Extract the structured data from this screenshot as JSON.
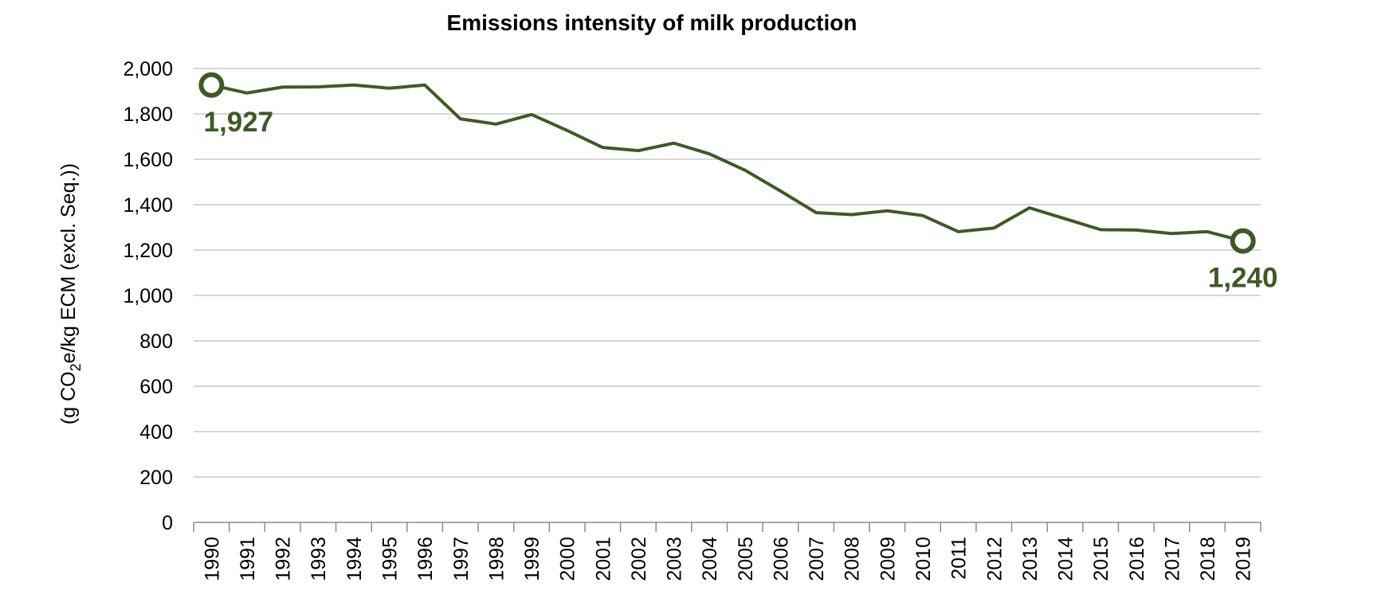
{
  "chart_data": {
    "type": "line",
    "title": "Emissions intensity of milk production",
    "ylabel_prefix": "(g CO",
    "ylabel_subscript": "2",
    "ylabel_suffix": "e/kg ECM (excl. Seq.))",
    "xlabel": "",
    "ylim": [
      0,
      2000
    ],
    "ytick_step": 200,
    "yticks": [
      "0",
      "200",
      "400",
      "600",
      "800",
      "1,000",
      "1,200",
      "1,400",
      "1,600",
      "1,800",
      "2,000"
    ],
    "categories": [
      "1990",
      "1991",
      "1992",
      "1993",
      "1994",
      "1995",
      "1996",
      "1997",
      "1998",
      "1999",
      "2000",
      "2001",
      "2002",
      "2003",
      "2004",
      "2005",
      "2006",
      "2007",
      "2008",
      "2009",
      "2010",
      "2011",
      "2012",
      "2013",
      "2014",
      "2015",
      "2016",
      "2017",
      "2018",
      "2019"
    ],
    "series": [
      {
        "name": "Emissions intensity",
        "color": "#3d5a24",
        "values": [
          1927,
          1892,
          1918,
          1919,
          1927,
          1913,
          1927,
          1778,
          1755,
          1797,
          1727,
          1652,
          1638,
          1671,
          1624,
          1552,
          1460,
          1365,
          1356,
          1373,
          1352,
          1281,
          1297,
          1386,
          1338,
          1290,
          1288,
          1273,
          1281,
          1240
        ]
      }
    ],
    "annotations": [
      {
        "category": "1990",
        "label": "1,927",
        "position": "below"
      },
      {
        "category": "2019",
        "label": "1,240",
        "position": "below"
      }
    ],
    "grid": true,
    "legend": "none"
  }
}
